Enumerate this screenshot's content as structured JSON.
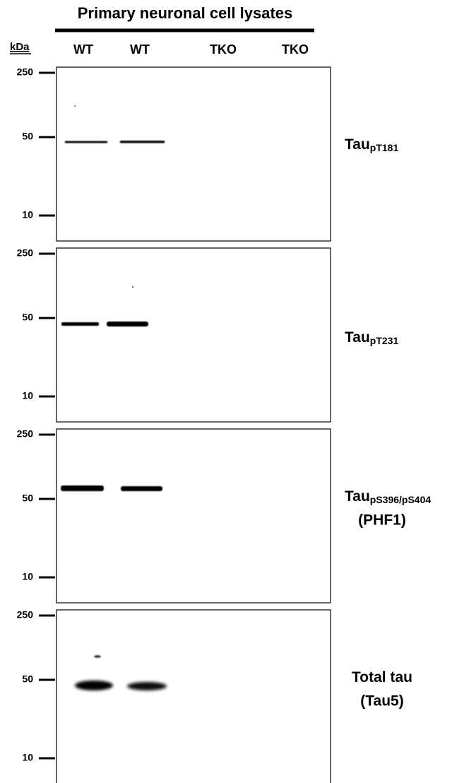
{
  "header": {
    "title": "Primary neuronal cell lysates",
    "kda_label": "kDa",
    "lanes": [
      "WT",
      "WT",
      "TKO",
      "TKO"
    ]
  },
  "panels": [
    {
      "markers": [
        250,
        50,
        10
      ],
      "label": {
        "main": "Tau",
        "sub": "pT181"
      }
    },
    {
      "markers": [
        250,
        50,
        10
      ],
      "label": {
        "main": "Tau",
        "sub": "pT231"
      }
    },
    {
      "markers": [
        250,
        50,
        10
      ],
      "label": {
        "main": "Tau",
        "sub": "pS396/pS404",
        "line2": "(PHF1)"
      }
    },
    {
      "markers": [
        250,
        50,
        10
      ],
      "label": {
        "main": "Total tau",
        "line2": "(Tau5)"
      }
    }
  ]
}
